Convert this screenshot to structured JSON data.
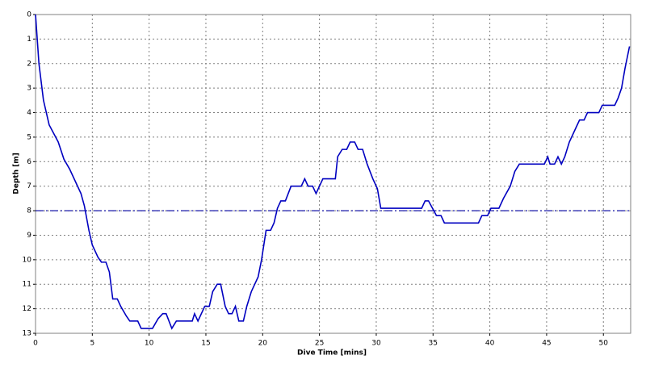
{
  "chart_data": {
    "type": "line",
    "x_label": "Dive Time [mins]",
    "y_label": "Depth [m]",
    "xlim": [
      0,
      52.4
    ],
    "xticks": [
      0,
      5,
      10,
      15,
      20,
      25,
      30,
      35,
      40,
      45,
      50
    ],
    "ylim": [
      0,
      13
    ],
    "yticks": [
      0,
      1,
      2,
      3,
      4,
      5,
      6,
      7,
      8,
      9,
      10,
      11,
      12,
      13
    ],
    "y_inverted": true,
    "grid": true,
    "reference_line": {
      "value": 8,
      "color": "#0000a0"
    },
    "x": [
      0,
      0.3,
      0.7,
      1.2,
      2,
      2.5,
      3,
      3.5,
      4,
      4.3,
      4.7,
      5,
      5.5,
      5.8,
      6.2,
      6.5,
      6.8,
      7.2,
      7.5,
      8,
      8.3,
      9,
      9.3,
      10,
      10.3,
      10.8,
      11.2,
      11.5,
      12,
      12.4,
      13,
      13.8,
      14,
      14.3,
      14.6,
      14.9,
      15.3,
      15.6,
      16,
      16.3,
      16.7,
      17,
      17.3,
      17.6,
      17.9,
      18.3,
      18.6,
      19,
      19.6,
      19.9,
      20.3,
      20.7,
      21,
      21.3,
      21.6,
      22,
      22.5,
      23.4,
      23.7,
      24,
      24.4,
      24.7,
      25.3,
      26.4,
      26.6,
      27,
      27.4,
      27.7,
      28.1,
      28.4,
      28.8,
      29.2,
      29.7,
      30.1,
      30.4,
      34,
      34.3,
      34.6,
      35.3,
      35.7,
      36,
      39,
      39.3,
      39.8,
      40.1,
      40.8,
      41.2,
      41.8,
      42.2,
      42.6,
      44.8,
      45.1,
      45.3,
      45.7,
      46,
      46.3,
      46.6,
      47,
      47.6,
      47.9,
      48.3,
      48.6,
      49.6,
      49.9,
      51,
      51.3,
      51.6,
      51.9,
      52.3
    ],
    "series": [
      {
        "color": "#0000c0",
        "values": [
          0,
          2,
          3.5,
          4.5,
          5.2,
          5.9,
          6.3,
          6.8,
          7.3,
          7.8,
          8.8,
          9.4,
          9.9,
          10.1,
          10.1,
          10.5,
          11.6,
          11.6,
          11.9,
          12.3,
          12.5,
          12.5,
          12.8,
          12.8,
          12.8,
          12.4,
          12.2,
          12.2,
          12.8,
          12.5,
          12.5,
          12.5,
          12.2,
          12.5,
          12.2,
          11.9,
          11.9,
          11.3,
          11,
          11,
          11.9,
          12.2,
          12.2,
          11.9,
          12.5,
          12.5,
          11.9,
          11.3,
          10.7,
          10,
          8.8,
          8.8,
          8.5,
          7.9,
          7.6,
          7.6,
          7,
          7,
          6.7,
          7,
          7,
          7.3,
          6.7,
          6.7,
          5.8,
          5.5,
          5.5,
          5.2,
          5.2,
          5.5,
          5.5,
          6.1,
          6.7,
          7.1,
          7.9,
          7.9,
          7.6,
          7.6,
          8.2,
          8.2,
          8.5,
          8.5,
          8.2,
          8.2,
          7.9,
          7.9,
          7.5,
          7,
          6.4,
          6.1,
          6.1,
          5.8,
          6.1,
          6.1,
          5.8,
          6.1,
          5.8,
          5.2,
          4.6,
          4.3,
          4.3,
          4,
          4,
          3.7,
          3.7,
          3.4,
          3,
          2.2,
          1.3
        ]
      }
    ]
  }
}
